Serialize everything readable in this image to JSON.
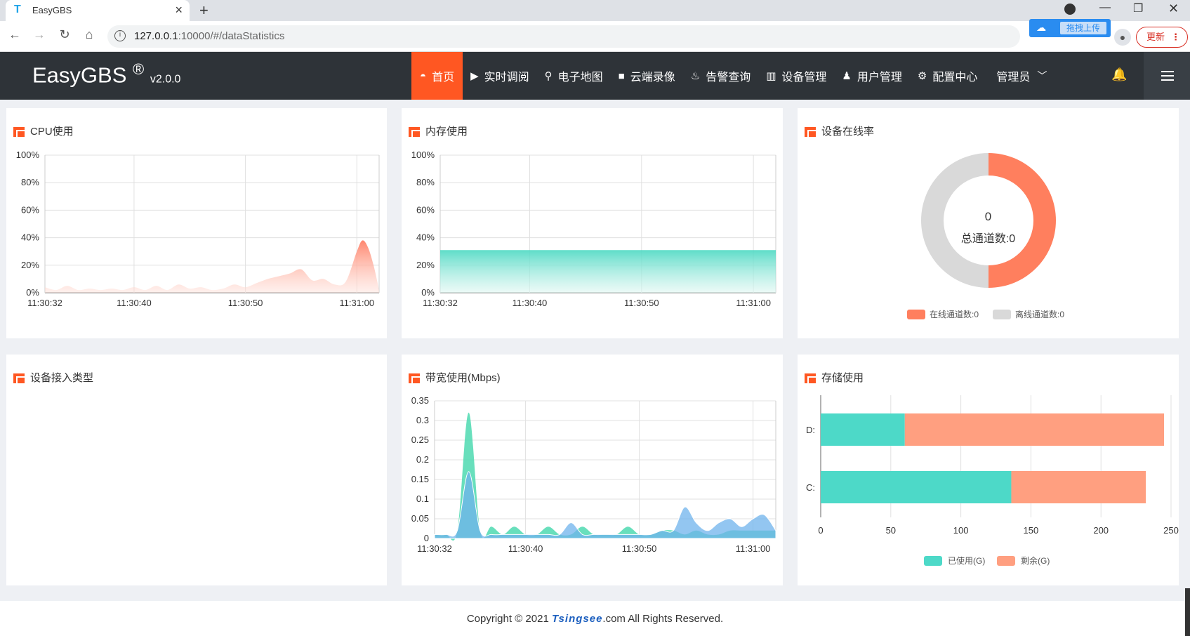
{
  "browser": {
    "tab_title": "EasyGBS",
    "url_host": "127.0.0.1",
    "url_rest": ":10000/#/dataStatistics",
    "extension_label": "拖拽上传",
    "update_label": "更新"
  },
  "app": {
    "logo": "EasyGBS",
    "logo_mark": "®",
    "version": "v2.0.0",
    "menu": [
      {
        "label": "首页",
        "icon": "dashboard-icon",
        "active": true
      },
      {
        "label": "实时调阅",
        "icon": "play-icon"
      },
      {
        "label": "电子地图",
        "icon": "map-pin-icon"
      },
      {
        "label": "云端录像",
        "icon": "video-camera-icon"
      },
      {
        "label": "告警查询",
        "icon": "alarm-icon"
      },
      {
        "label": "设备管理",
        "icon": "device-icon"
      },
      {
        "label": "用户管理",
        "icon": "user-icon"
      },
      {
        "label": "配置中心",
        "icon": "gear-icon"
      }
    ],
    "user_menu": "管理员"
  },
  "panels": {
    "cpu": {
      "title": "CPU使用"
    },
    "memory": {
      "title": "内存使用"
    },
    "online": {
      "title": "设备在线率",
      "center_value": "0",
      "center_label": "总通道数:0"
    },
    "access": {
      "title": "设备接入类型"
    },
    "bandwidth": {
      "title": "带宽使用(Mbps)"
    },
    "storage": {
      "title": "存储使用"
    }
  },
  "chart_data": [
    {
      "type": "area",
      "title": "CPU使用",
      "x_ticks": [
        "11:30:32",
        "11:30:40",
        "11:30:50",
        "11:31:00"
      ],
      "y_ticks": [
        "0%",
        "20%",
        "40%",
        "60%",
        "80%",
        "100%"
      ],
      "ylim": [
        0,
        100
      ],
      "xlim_seconds": [
        0,
        30
      ],
      "series": [
        {
          "x": [
            0,
            1,
            2,
            3,
            4,
            5,
            6,
            7,
            8,
            9,
            10,
            11,
            12,
            13,
            14,
            15,
            16,
            17,
            18,
            19,
            20,
            21,
            22,
            23,
            24,
            25,
            26,
            27,
            28,
            28.5,
            29,
            29.5,
            30
          ],
          "values": [
            4,
            2,
            5,
            2,
            3,
            2,
            3,
            2,
            4,
            2,
            5,
            2,
            6,
            3,
            4,
            2,
            3,
            6,
            4,
            7,
            10,
            12,
            14,
            17,
            9,
            10,
            6,
            8,
            30,
            38,
            33,
            20,
            2
          ]
        }
      ],
      "color": "#ff7f66"
    },
    {
      "type": "area",
      "title": "内存使用",
      "x_ticks": [
        "11:30:32",
        "11:30:40",
        "11:30:50",
        "11:31:00"
      ],
      "y_ticks": [
        "0%",
        "20%",
        "40%",
        "60%",
        "80%",
        "100%"
      ],
      "ylim": [
        0,
        100
      ],
      "xlim_seconds": [
        0,
        30
      ],
      "series": [
        {
          "x": [
            0,
            30
          ],
          "values": [
            31,
            31
          ]
        }
      ],
      "color": "#4dd9c3"
    },
    {
      "type": "pie",
      "title": "设备在线率",
      "categories": [
        "在线通道数:0",
        "离线通道数:0"
      ],
      "values": [
        0,
        0
      ],
      "colors": [
        "#ff7f5e",
        "#d9d9d9"
      ]
    },
    {
      "type": "area",
      "title": "带宽使用(Mbps)",
      "x_ticks": [
        "11:30:32",
        "11:30:40",
        "11:30:50",
        "11:31:00"
      ],
      "y_ticks": [
        "0",
        "0.05",
        "0.1",
        "0.15",
        "0.2",
        "0.25",
        "0.3",
        "0.35"
      ],
      "ylim": [
        0,
        0.35
      ],
      "xlim_seconds": [
        0,
        30
      ],
      "series": [
        {
          "x": [
            0,
            1,
            2,
            3,
            4,
            5,
            6,
            7,
            8,
            9,
            10,
            11,
            12,
            13,
            14,
            15,
            16,
            17,
            18,
            19,
            20,
            21,
            22,
            23,
            24,
            25,
            26,
            27,
            28,
            29,
            30
          ],
          "values": [
            0.01,
            0.01,
            0.02,
            0.32,
            0.02,
            0.03,
            0.01,
            0.03,
            0.01,
            0.01,
            0.03,
            0.01,
            0.01,
            0.03,
            0.01,
            0.01,
            0.01,
            0.03,
            0.01,
            0.01,
            0.02,
            0.02,
            0.01,
            0.02,
            0.01,
            0.01,
            0.02,
            0.02,
            0.02,
            0.02,
            0.02
          ],
          "color": "#4dd9b0"
        },
        {
          "x": [
            0,
            1,
            2,
            3,
            4,
            5,
            6,
            7,
            8,
            9,
            10,
            11,
            12,
            13,
            14,
            15,
            16,
            17,
            18,
            19,
            20,
            21,
            22,
            23,
            24,
            25,
            26,
            27,
            28,
            29,
            30
          ],
          "values": [
            0.01,
            0.01,
            0.02,
            0.17,
            0.02,
            0.01,
            0.01,
            0.01,
            0.01,
            0.01,
            0.01,
            0.01,
            0.04,
            0.01,
            0.01,
            0.01,
            0.01,
            0.01,
            0.01,
            0.01,
            0.02,
            0.02,
            0.08,
            0.04,
            0.02,
            0.04,
            0.05,
            0.03,
            0.05,
            0.06,
            0.02
          ],
          "color": "#6fb3ec"
        }
      ]
    },
    {
      "type": "bar",
      "orientation": "horizontal",
      "stacked": true,
      "title": "存储使用",
      "categories": [
        "D:",
        "C:"
      ],
      "x_ticks": [
        "0",
        "50",
        "100",
        "150",
        "200",
        "250"
      ],
      "xlim": [
        0,
        250
      ],
      "series": [
        {
          "name": "已使用(G)",
          "values": [
            60,
            136
          ],
          "color": "#4dd9c8"
        },
        {
          "name": "剩余(G)",
          "values": [
            185,
            96
          ],
          "color": "#ff9f80"
        }
      ]
    }
  ],
  "footer": {
    "prefix": "Copyright © 2021 ",
    "brand": "Tsingsee",
    "suffix": ".com All Rights Reserved."
  }
}
